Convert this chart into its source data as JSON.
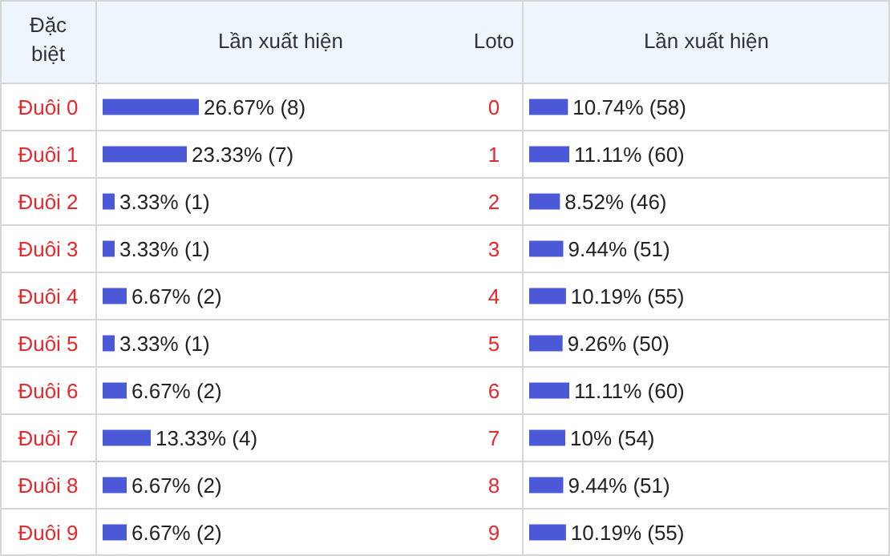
{
  "chart_data": [
    {
      "type": "bar",
      "orientation": "horizontal",
      "xlabel": "Lần xuất hiện",
      "ylabel": "Đặc biệt",
      "categories": [
        "Đuôi 0",
        "Đuôi 1",
        "Đuôi 2",
        "Đuôi 3",
        "Đuôi 4",
        "Đuôi 5",
        "Đuôi 6",
        "Đuôi 7",
        "Đuôi 8",
        "Đuôi 9"
      ],
      "color": "#4b59d6",
      "values": [
        26.67,
        23.33,
        3.33,
        3.33,
        6.67,
        3.33,
        6.67,
        13.33,
        6.67,
        6.67
      ],
      "value_labels": [
        "26.67% (8)",
        "23.33% (7)",
        "3.33% (1)",
        "3.33% (1)",
        "6.67% (2)",
        "3.33% (1)",
        "6.67% (2)",
        "13.33% (4)",
        "6.67% (2)",
        "6.67% (2)"
      ]
    },
    {
      "type": "bar",
      "orientation": "horizontal",
      "xlabel": "Lần xuất hiện",
      "ylabel": "Loto",
      "categories": [
        "0",
        "1",
        "2",
        "3",
        "4",
        "5",
        "6",
        "7",
        "8",
        "9"
      ],
      "color": "#4b59d6",
      "values": [
        10.74,
        11.11,
        8.52,
        9.44,
        10.19,
        9.26,
        11.11,
        10,
        9.44,
        10.19
      ],
      "value_labels": [
        "10.74% (58)",
        "11.11% (60)",
        "8.52% (46)",
        "9.44% (51)",
        "10.19% (55)",
        "9.26% (50)",
        "11.11% (60)",
        "10% (54)",
        "9.44% (51)",
        "10.19% (55)"
      ]
    }
  ]
}
